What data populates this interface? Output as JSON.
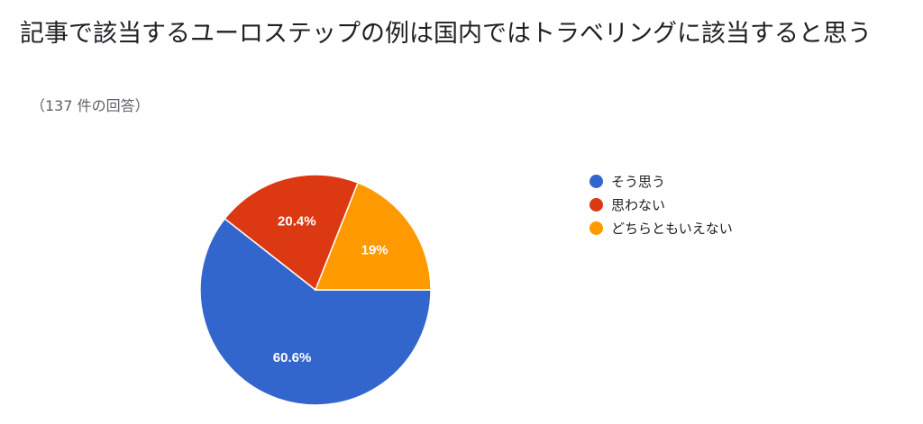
{
  "title": "記事で該当するユーロステップの例は国内ではトラベリングに該当すると思う",
  "subtitle": "（137 件の回答）",
  "chart_data": {
    "type": "pie",
    "title": "記事で該当するユーロステップの例は国内ではトラベリングに該当すると思う",
    "total_responses": 137,
    "legend_position": "right",
    "slices": [
      {
        "label": "そう思う",
        "value": 60.6,
        "display": "60.6%",
        "color": "#3366cc"
      },
      {
        "label": "思わない",
        "value": 20.4,
        "display": "20.4%",
        "color": "#dc3912"
      },
      {
        "label": "どちらともいえない",
        "value": 19,
        "display": "19%",
        "color": "#ff9900"
      }
    ]
  }
}
